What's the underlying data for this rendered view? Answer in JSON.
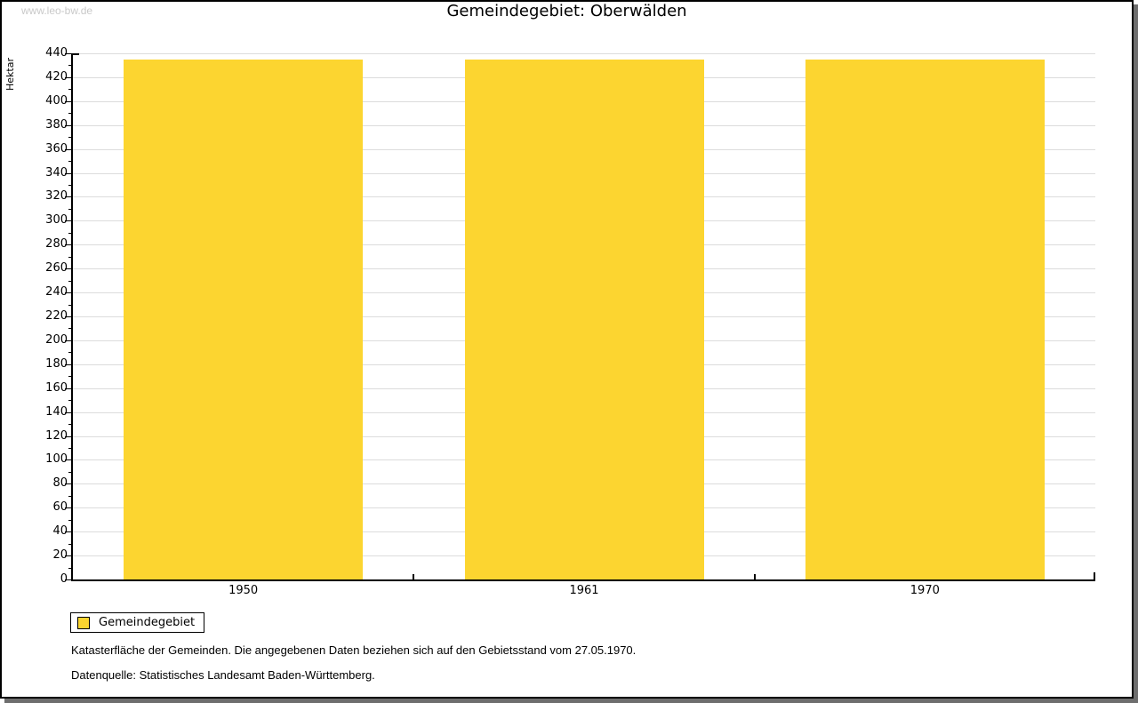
{
  "watermark": "www.leo-bw.de",
  "title": "Gemeindegebiet: Oberwälden",
  "chart_data": {
    "type": "bar",
    "categories": [
      "1950",
      "1961",
      "1970"
    ],
    "series": [
      {
        "name": "Gemeindegebiet",
        "values": [
          435,
          435,
          435
        ]
      }
    ],
    "title": "Gemeindegebiet: Oberwälden",
    "xlabel": "",
    "ylabel": "Hektar",
    "ylim": [
      0,
      440
    ],
    "ytick_step": 20,
    "yminor_step": 10,
    "grid": true,
    "legend_position": "bottom-left",
    "bar_color": "#FCD530"
  },
  "legend": {
    "label": "Gemeindegebiet",
    "swatch_color": "#FCD530"
  },
  "footnotes": [
    "Katasterfläche der Gemeinden. Die angegebenen Daten beziehen sich auf den Gebietsstand vom 27.05.1970.",
    "Datenquelle: Statistisches Landesamt Baden-Württemberg."
  ],
  "colors": {
    "bar": "#FCD530",
    "gridline": "#DCDCDC",
    "axis": "#000000",
    "frame_border": "#000000",
    "frame_shadow": "#6E6E6E",
    "watermark": "#C9C9C9",
    "background": "#FFFFFF"
  }
}
